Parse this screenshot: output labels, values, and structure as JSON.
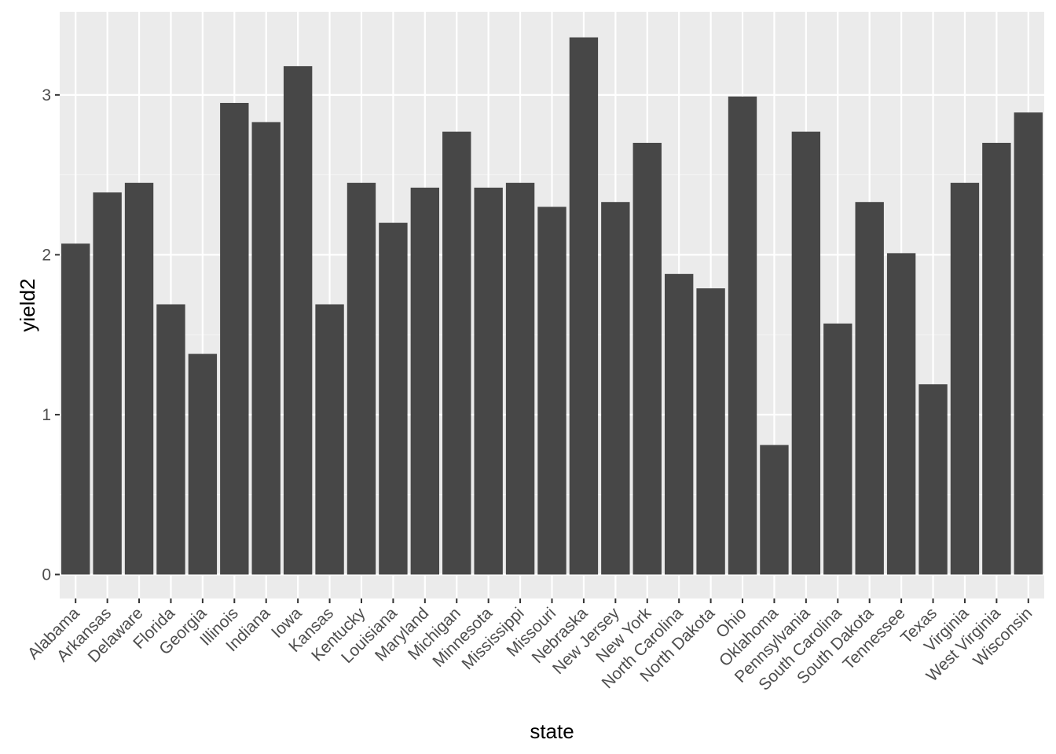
{
  "chart_data": {
    "type": "bar",
    "title": "",
    "xlabel": "state",
    "ylabel": "yield2",
    "ylim": [
      -0.15,
      3.52
    ],
    "yticks": [
      0,
      1,
      2,
      3
    ],
    "grid": true,
    "categories": [
      "Alabama",
      "Arkansas",
      "Delaware",
      "Florida",
      "Georgia",
      "Illinois",
      "Indiana",
      "Iowa",
      "Kansas",
      "Kentucky",
      "Louisiana",
      "Maryland",
      "Michigan",
      "Minnesota",
      "Mississippi",
      "Missouri",
      "Nebraska",
      "New Jersey",
      "New York",
      "North Carolina",
      "North Dakota",
      "Ohio",
      "Oklahoma",
      "Pennsylvania",
      "South Carolina",
      "South Dakota",
      "Tennessee",
      "Texas",
      "Virginia",
      "West Virginia",
      "Wisconsin"
    ],
    "values": [
      2.07,
      2.39,
      2.45,
      1.69,
      1.38,
      2.95,
      2.83,
      3.18,
      1.69,
      2.45,
      2.2,
      2.42,
      2.77,
      2.42,
      2.45,
      2.3,
      3.36,
      2.33,
      2.7,
      1.88,
      1.79,
      2.99,
      0.81,
      2.77,
      1.57,
      2.33,
      2.01,
      1.19,
      2.45,
      2.7,
      2.89
    ],
    "colors": {
      "bar": "#474747",
      "panel": "#ebebeb",
      "grid_major": "#ffffff",
      "grid_minor": "#f5f5f5",
      "tick": "#333333",
      "tick_text": "#4d4d4d"
    }
  }
}
